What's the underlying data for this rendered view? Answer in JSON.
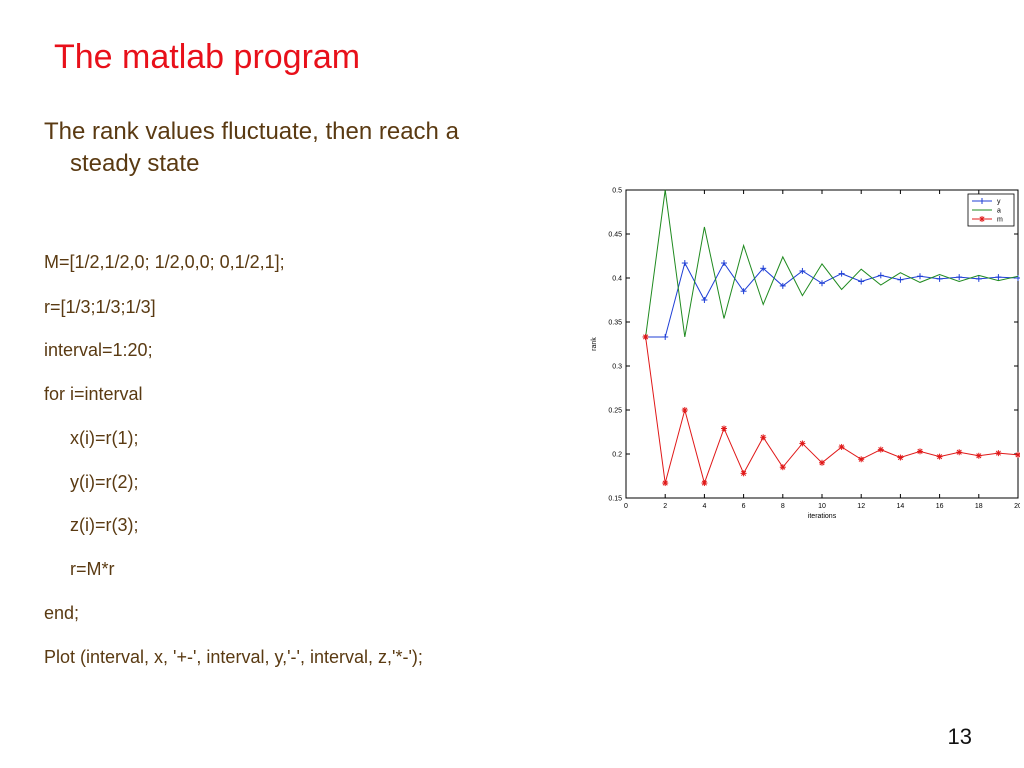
{
  "slide": {
    "title": "The matlab program",
    "bullet_line1": "The rank values fluctuate, then reach a",
    "bullet_line2": "steady state",
    "code": [
      "M=[1/2,1/2,0;  1/2,0,0; 0,1/2,1];",
      "r=[1/3;1/3;1/3]",
      "interval=1:20;",
      "for i=interval",
      "x(i)=r(1);",
      "y(i)=r(2);",
      "z(i)=r(3);",
      "r=M*r",
      "end;",
      "Plot (interval, x, '+-', interval, y,'-', interval, z,'*-');"
    ],
    "page_number": "13"
  },
  "chart_data": {
    "type": "line",
    "xlabel": "iterations",
    "ylabel": "rank",
    "xlim": [
      0,
      20
    ],
    "ylim": [
      0.15,
      0.5
    ],
    "xticks": [
      0,
      2,
      4,
      6,
      8,
      10,
      12,
      14,
      16,
      18,
      20
    ],
    "yticks": [
      0.15,
      0.2,
      0.25,
      0.3,
      0.35,
      0.4,
      0.45,
      0.5
    ],
    "legend_position": "top-right",
    "x": [
      1,
      2,
      3,
      4,
      5,
      6,
      7,
      8,
      9,
      10,
      11,
      12,
      13,
      14,
      15,
      16,
      17,
      18,
      19,
      20
    ],
    "series": [
      {
        "name": "y",
        "color": "#1f3fd6",
        "marker": "plus",
        "values": [
          0.333,
          0.333,
          0.417,
          0.375,
          0.417,
          0.385,
          0.411,
          0.391,
          0.408,
          0.394,
          0.405,
          0.396,
          0.403,
          0.398,
          0.402,
          0.399,
          0.401,
          0.399,
          0.401,
          0.4
        ]
      },
      {
        "name": "a",
        "color": "#1f8a1f",
        "marker": "none",
        "values": [
          0.333,
          0.5,
          0.333,
          0.458,
          0.354,
          0.437,
          0.37,
          0.424,
          0.38,
          0.416,
          0.387,
          0.41,
          0.392,
          0.406,
          0.395,
          0.404,
          0.396,
          0.403,
          0.397,
          0.402
        ]
      },
      {
        "name": "m",
        "color": "#e01818",
        "marker": "star",
        "values": [
          0.333,
          0.167,
          0.25,
          0.167,
          0.229,
          0.178,
          0.219,
          0.185,
          0.212,
          0.19,
          0.208,
          0.194,
          0.205,
          0.196,
          0.203,
          0.197,
          0.202,
          0.198,
          0.201,
          0.199
        ]
      }
    ]
  }
}
